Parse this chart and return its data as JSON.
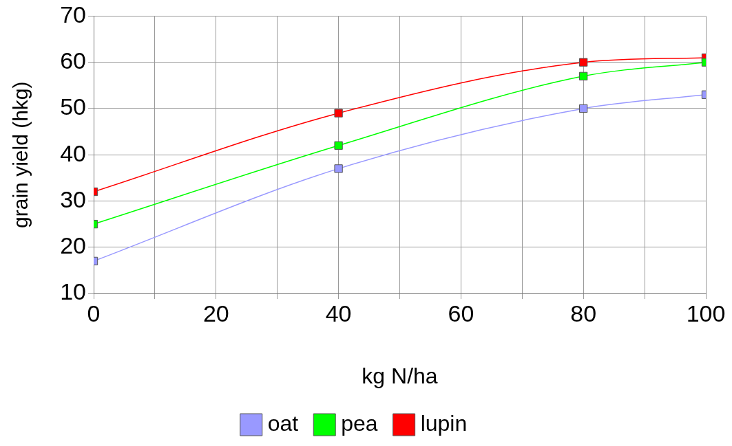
{
  "chart_data": {
    "type": "line",
    "xlabel": "kg N/ha",
    "ylabel": "grain yield (hkg)",
    "x": [
      0,
      40,
      80,
      100
    ],
    "series": [
      {
        "name": "oat",
        "color": "#9999ff",
        "values": [
          17,
          37,
          50,
          53
        ]
      },
      {
        "name": "pea",
        "color": "#00ff00",
        "values": [
          25,
          42,
          57,
          60
        ]
      },
      {
        "name": "lupin",
        "color": "#ff0000",
        "values": [
          32,
          49,
          60,
          61
        ]
      }
    ],
    "xlim": [
      0,
      100
    ],
    "xticks": [
      0,
      {
        "value": 10,
        "label": null
      },
      20,
      {
        "value": 30,
        "label": null
      },
      40,
      {
        "value": 50,
        "label": null
      },
      60,
      {
        "value": 70,
        "label": null
      },
      80,
      {
        "value": 90,
        "label": null
      },
      100
    ],
    "ylim": [
      10,
      70
    ],
    "yticks": [
      10,
      20,
      30,
      40,
      50,
      60,
      70
    ],
    "grid": true,
    "legend": "bottom",
    "marker": "square",
    "line_style": "solid"
  }
}
